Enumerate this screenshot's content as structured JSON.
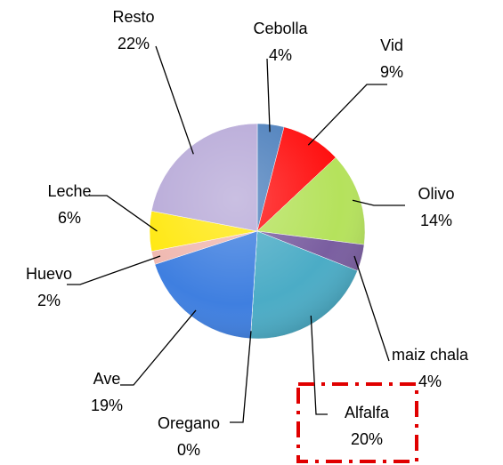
{
  "chart_data": {
    "type": "pie",
    "categories": [
      "Cebolla",
      "Vid",
      "Olivo",
      "maiz chala",
      "Alfalfa",
      "Oregano",
      "Ave",
      "Huevo",
      "Leche",
      "Resto"
    ],
    "values": [
      4,
      9,
      14,
      4,
      20,
      0,
      19,
      2,
      6,
      22
    ],
    "value_labels": [
      "4%",
      "9%",
      "14%",
      "4%",
      "20%",
      "0%",
      "19%",
      "2%",
      "6%",
      "22%"
    ],
    "colors": [
      "#4f81bd",
      "#ff1010",
      "#b5e25c",
      "#7a5ea0",
      "#4bacc6",
      "#9bbb59",
      "#3f7fe0",
      "#f0b8b0",
      "#ffe810",
      "#b8aad8"
    ]
  }
}
